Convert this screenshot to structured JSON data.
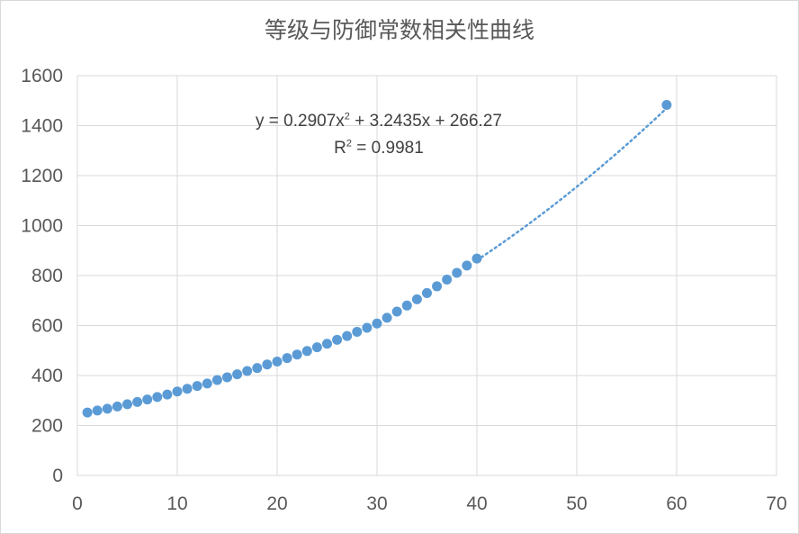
{
  "chart_data": {
    "type": "scatter",
    "title": "等级与防御常数相关性曲线",
    "xlabel": "",
    "ylabel": "",
    "xlim": [
      0,
      70
    ],
    "ylim": [
      0,
      1600
    ],
    "xticks": [
      0,
      10,
      20,
      30,
      40,
      50,
      60,
      70
    ],
    "yticks": [
      0,
      200,
      400,
      600,
      800,
      1000,
      1200,
      1400,
      1600
    ],
    "grid": true,
    "legend": "none",
    "colors": {
      "marker": "#5b9bd5",
      "trendline": "#5b9bd5",
      "gridline": "#d9d9d9",
      "text": "#595959"
    },
    "points": [
      [
        1,
        252
      ],
      [
        2,
        260
      ],
      [
        3,
        267
      ],
      [
        4,
        276
      ],
      [
        5,
        285
      ],
      [
        6,
        294
      ],
      [
        7,
        304
      ],
      [
        8,
        314
      ],
      [
        9,
        324
      ],
      [
        10,
        336
      ],
      [
        11,
        347
      ],
      [
        12,
        358
      ],
      [
        13,
        368
      ],
      [
        14,
        382
      ],
      [
        15,
        393
      ],
      [
        16,
        405
      ],
      [
        17,
        418
      ],
      [
        18,
        430
      ],
      [
        19,
        444
      ],
      [
        20,
        456
      ],
      [
        21,
        470
      ],
      [
        22,
        484
      ],
      [
        23,
        498
      ],
      [
        24,
        513
      ],
      [
        25,
        527
      ],
      [
        26,
        543
      ],
      [
        27,
        558
      ],
      [
        28,
        575
      ],
      [
        29,
        591
      ],
      [
        30,
        608
      ],
      [
        31,
        631
      ],
      [
        32,
        656
      ],
      [
        33,
        680
      ],
      [
        34,
        705
      ],
      [
        35,
        730
      ],
      [
        36,
        757
      ],
      [
        37,
        784
      ],
      [
        38,
        811
      ],
      [
        39,
        840
      ],
      [
        40,
        868
      ],
      [
        59,
        1483
      ]
    ],
    "trendline": {
      "type": "polynomial",
      "order": 2,
      "coefficients": [
        0.2907,
        3.2435,
        266.27
      ],
      "x_range": [
        40,
        59
      ],
      "style": "dotted",
      "equation_prefix": "y = 0.2907x",
      "equation_suffix": " + 3.2435x + 266.27",
      "r2_prefix": "R",
      "r2_suffix": " = 0.9981",
      "superscript": "2"
    }
  }
}
